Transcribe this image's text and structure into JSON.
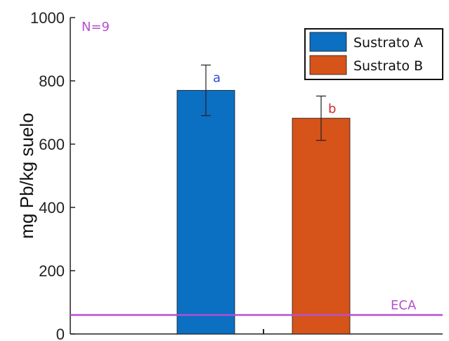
{
  "chart_data": {
    "type": "bar",
    "categories": [
      "",
      ""
    ],
    "series": [
      {
        "name": "Sustrato A",
        "value": 770,
        "error": 80,
        "letter": "a",
        "color": "#0b6fc2",
        "letter_color": "#2b4fd0"
      },
      {
        "name": "Sustrato B",
        "value": 682,
        "error": 70,
        "letter": "b",
        "color": "#d6531a",
        "letter_color": "#d02b2b"
      }
    ],
    "ylabel": "mg Pb/kg suelo",
    "ylim": [
      0,
      1000
    ],
    "yticks": [
      "0",
      "200",
      "400",
      "600",
      "800",
      "1000"
    ],
    "ytick_values": [
      0,
      200,
      400,
      600,
      800,
      1000
    ],
    "sample_note": "N=9",
    "reference_line": {
      "label": "ECA",
      "value": 60,
      "color": "#b54fcf"
    },
    "legend_position": "top-right",
    "grid": false
  }
}
